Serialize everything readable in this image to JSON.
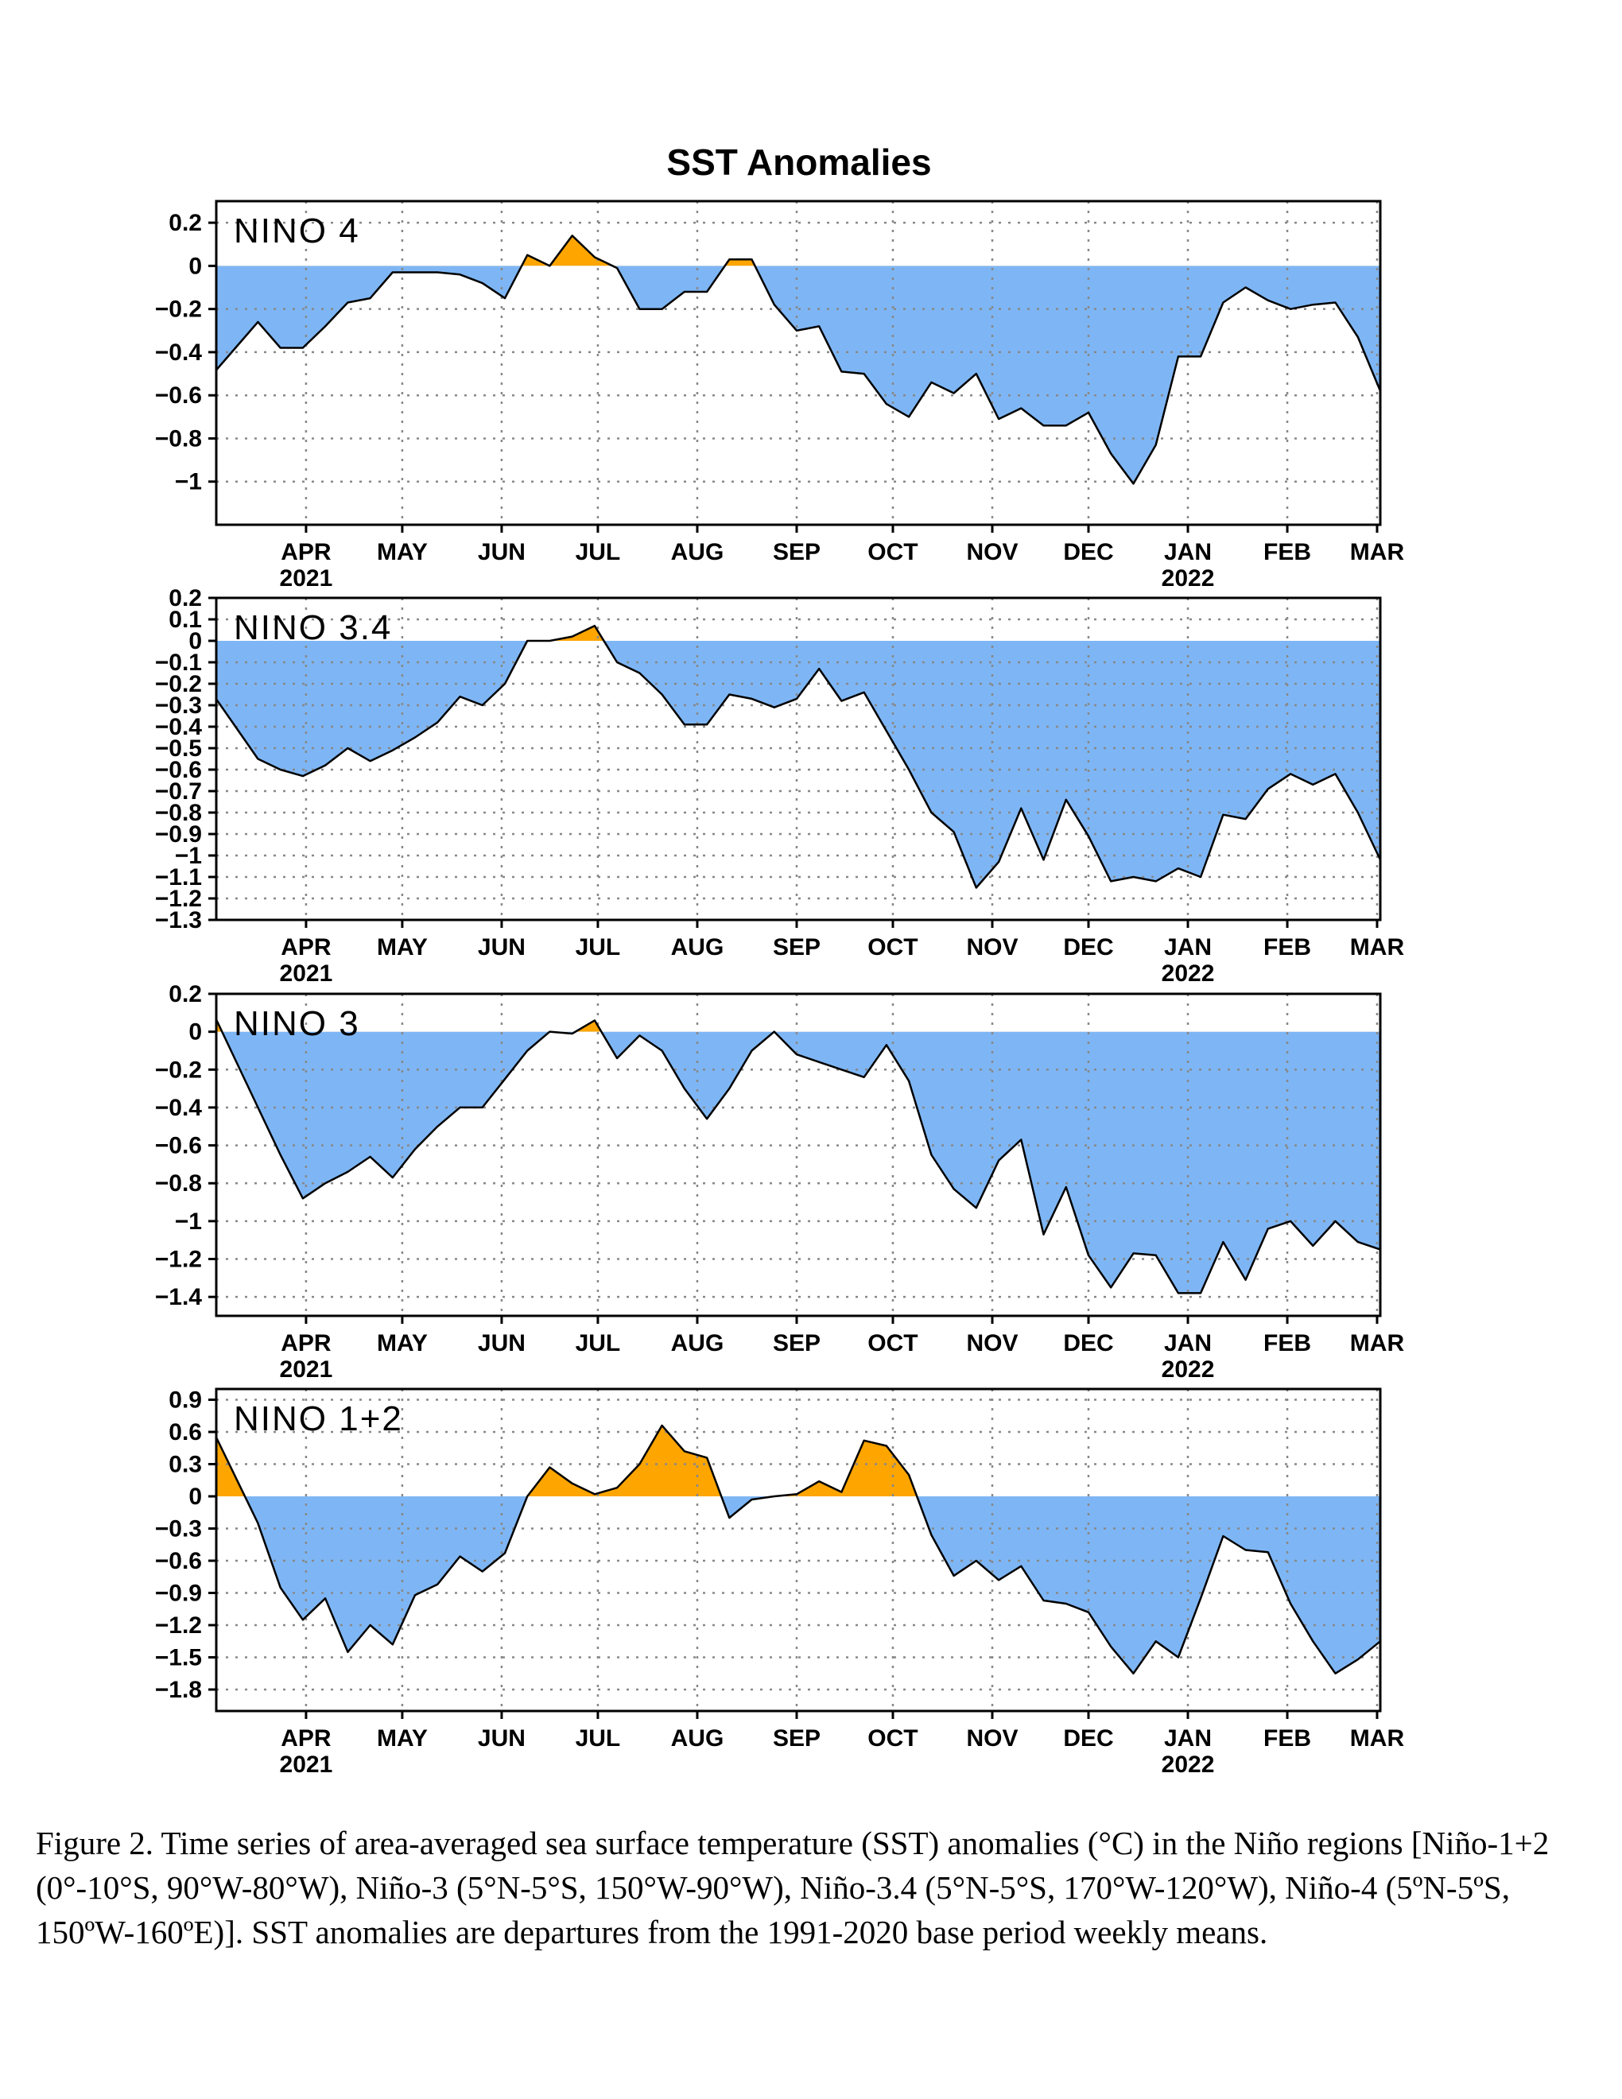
{
  "title": "SST Anomalies",
  "months": [
    "APR",
    "MAY",
    "JUN",
    "JUL",
    "AUG",
    "SEP",
    "OCT",
    "NOV",
    "DEC",
    "JAN",
    "FEB",
    "MAR"
  ],
  "years": [
    {
      "label": "2021",
      "month": "APR"
    },
    {
      "label": "2022",
      "month": "JAN"
    }
  ],
  "colors": {
    "positive": "#FFA500",
    "negative": "#7EB6F5",
    "line": "#000000",
    "grid": "#888888"
  },
  "caption": "Figure 2. Time series of area-averaged sea surface temperature (SST) anomalies (°C) in the Niño regions [Niño-1+2 (0°-10°S, 90°W-80°W), Niño-3 (5°N-5°S, 150°W-90°W), Niño-3.4 (5°N-5°S, 170°W-120°W), Niño-4 (5ºN-5ºS, 150ºW-160ºE)]. SST anomalies are departures from the 1991-2020 base period weekly means.",
  "chart_data": [
    {
      "type": "area",
      "label": "NINO 4",
      "ylim": [
        -1.2,
        0.3
      ],
      "yticks": [
        0.2,
        0,
        -0.2,
        -0.4,
        -0.6,
        -0.8,
        -1
      ],
      "ytick_labels": [
        "0.2",
        "0",
        "−0.2",
        "−0.4",
        "−0.6",
        "−0.8",
        "−1"
      ],
      "x": [
        "2021-03-10",
        "2021-03-17",
        "2021-03-24",
        "2021-03-31",
        "2021-04-07",
        "2021-04-14",
        "2021-04-21",
        "2021-04-28",
        "2021-05-05",
        "2021-05-12",
        "2021-05-19",
        "2021-05-26",
        "2021-06-02",
        "2021-06-09",
        "2021-06-16",
        "2021-06-23",
        "2021-06-30",
        "2021-07-07",
        "2021-07-14",
        "2021-07-21",
        "2021-07-28",
        "2021-08-04",
        "2021-08-11",
        "2021-08-18",
        "2021-08-25",
        "2021-09-01",
        "2021-09-08",
        "2021-09-15",
        "2021-09-22",
        "2021-09-29",
        "2021-10-06",
        "2021-10-13",
        "2021-10-20",
        "2021-10-27",
        "2021-11-03",
        "2021-11-10",
        "2021-11-17",
        "2021-11-24",
        "2021-12-01",
        "2021-12-08",
        "2021-12-15",
        "2021-12-22",
        "2021-12-29",
        "2022-01-05",
        "2022-01-12",
        "2022-01-19",
        "2022-01-26",
        "2022-02-02",
        "2022-02-09",
        "2022-02-16",
        "2022-02-23",
        "2022-03-02"
      ],
      "values": [
        -0.38,
        -0.26,
        -0.38,
        -0.38,
        -0.28,
        -0.17,
        -0.15,
        -0.03,
        -0.03,
        -0.03,
        -0.04,
        -0.08,
        -0.15,
        0.05,
        0,
        0.14,
        0.04,
        -0.01,
        -0.2,
        -0.2,
        -0.12,
        -0.12,
        0.03,
        0.03,
        -0.18,
        -0.3,
        -0.28,
        -0.49,
        -0.5,
        -0.64,
        -0.7,
        -0.54,
        -0.59,
        -0.5,
        -0.71,
        -0.66,
        -0.74,
        -0.74,
        -0.68,
        -0.87,
        -1.01,
        -0.83,
        -0.42,
        -0.42,
        -0.17,
        -0.1,
        -0.16,
        -0.2,
        -0.18,
        -0.17,
        -0.33,
        -0.58
      ]
    },
    {
      "type": "area",
      "label": "NINO 3.4",
      "ylim": [
        -1.3,
        0.2
      ],
      "yticks": [
        0.2,
        0.1,
        0,
        -0.1,
        -0.2,
        -0.3,
        -0.4,
        -0.5,
        -0.6,
        -0.7,
        -0.8,
        -0.9,
        -1,
        -1.1,
        -1.2,
        -1.3
      ],
      "ytick_labels": [
        "0.2",
        "0.1",
        "0",
        "−0.1",
        "−0.2",
        "−0.3",
        "−0.4",
        "−0.5",
        "−0.6",
        "−0.7",
        "−0.8",
        "−0.9",
        "−1",
        "−1.1",
        "−1.2",
        "−1.3"
      ],
      "x": [
        "2021-03-10",
        "2021-03-17",
        "2021-03-24",
        "2021-03-31",
        "2021-04-07",
        "2021-04-14",
        "2021-04-21",
        "2021-04-28",
        "2021-05-05",
        "2021-05-12",
        "2021-05-19",
        "2021-05-26",
        "2021-06-02",
        "2021-06-09",
        "2021-06-16",
        "2021-06-23",
        "2021-06-30",
        "2021-07-07",
        "2021-07-14",
        "2021-07-21",
        "2021-07-28",
        "2021-08-04",
        "2021-08-11",
        "2021-08-18",
        "2021-08-25",
        "2021-09-01",
        "2021-09-08",
        "2021-09-15",
        "2021-09-22",
        "2021-09-29",
        "2021-10-06",
        "2021-10-13",
        "2021-10-20",
        "2021-10-27",
        "2021-11-03",
        "2021-11-10",
        "2021-11-17",
        "2021-11-24",
        "2021-12-01",
        "2021-12-08",
        "2021-12-15",
        "2021-12-22",
        "2021-12-29",
        "2022-01-05",
        "2022-01-12",
        "2022-01-19",
        "2022-01-26",
        "2022-02-02",
        "2022-02-09",
        "2022-02-16",
        "2022-02-23",
        "2022-03-02"
      ],
      "values": [
        -0.4,
        -0.55,
        -0.6,
        -0.63,
        -0.58,
        -0.5,
        -0.56,
        -0.51,
        -0.45,
        -0.38,
        -0.26,
        -0.3,
        -0.2,
        0,
        0,
        0.02,
        0.07,
        -0.1,
        -0.15,
        -0.25,
        -0.39,
        -0.39,
        -0.25,
        -0.27,
        -0.31,
        -0.27,
        -0.13,
        -0.28,
        -0.24,
        -0.42,
        -0.6,
        -0.8,
        -0.89,
        -1.15,
        -1.03,
        -0.78,
        -1.02,
        -0.74,
        -0.91,
        -1.12,
        -1.1,
        -1.12,
        -1.06,
        -1.1,
        -0.81,
        -0.83,
        -0.69,
        -0.62,
        -0.67,
        -0.62,
        -0.8,
        -1.02
      ]
    },
    {
      "type": "area",
      "label": "NINO 3",
      "ylim": [
        -1.5,
        0.2
      ],
      "yticks": [
        0.2,
        0,
        -0.2,
        -0.4,
        -0.6,
        -0.8,
        -1,
        -1.2,
        -1.4
      ],
      "ytick_labels": [
        "0.2",
        "0",
        "−0.2",
        "−0.4",
        "−0.6",
        "−0.8",
        "−1",
        "−1.2",
        "−1.4"
      ],
      "x": [
        "2021-03-10",
        "2021-03-17",
        "2021-03-24",
        "2021-03-31",
        "2021-04-07",
        "2021-04-14",
        "2021-04-21",
        "2021-04-28",
        "2021-05-05",
        "2021-05-12",
        "2021-05-19",
        "2021-05-26",
        "2021-06-02",
        "2021-06-09",
        "2021-06-16",
        "2021-06-23",
        "2021-06-30",
        "2021-07-07",
        "2021-07-14",
        "2021-07-21",
        "2021-07-28",
        "2021-08-04",
        "2021-08-11",
        "2021-08-18",
        "2021-08-25",
        "2021-09-01",
        "2021-09-08",
        "2021-09-15",
        "2021-09-22",
        "2021-09-29",
        "2021-10-06",
        "2021-10-13",
        "2021-10-20",
        "2021-10-27",
        "2021-11-03",
        "2021-11-10",
        "2021-11-17",
        "2021-11-24",
        "2021-12-01",
        "2021-12-08",
        "2021-12-15",
        "2021-12-22",
        "2021-12-29",
        "2022-01-05",
        "2022-01-12",
        "2022-01-19",
        "2022-01-26",
        "2022-02-02",
        "2022-02-09",
        "2022-02-16",
        "2022-02-23",
        "2022-03-02"
      ],
      "values": [
        -0.15,
        -0.4,
        -0.65,
        -0.88,
        -0.8,
        -0.74,
        -0.66,
        -0.77,
        -0.62,
        -0.5,
        -0.4,
        -0.4,
        -0.25,
        -0.1,
        0,
        -0.01,
        0.06,
        -0.14,
        -0.02,
        -0.1,
        -0.3,
        -0.46,
        -0.3,
        -0.1,
        0,
        -0.12,
        -0.16,
        -0.2,
        -0.24,
        -0.07,
        -0.26,
        -0.65,
        -0.83,
        -0.93,
        -0.68,
        -0.57,
        -1.07,
        -0.82,
        -1.18,
        -1.35,
        -1.17,
        -1.18,
        -1.38,
        -1.38,
        -1.11,
        -1.31,
        -1.04,
        -1.0,
        -1.13,
        -1.0,
        -1.11,
        -1.15
      ]
    },
    {
      "type": "area",
      "label": "NINO 1+2",
      "ylim": [
        -2.0,
        1.0
      ],
      "yticks": [
        0.9,
        0.6,
        0.3,
        0,
        -0.3,
        -0.6,
        -0.9,
        -1.2,
        -1.5,
        -1.8
      ],
      "ytick_labels": [
        "0.9",
        "0.6",
        "0.3",
        "0",
        "−0.3",
        "−0.6",
        "−0.9",
        "−1.2",
        "−1.5",
        "−1.8"
      ],
      "x": [
        "2021-03-10",
        "2021-03-17",
        "2021-03-24",
        "2021-03-31",
        "2021-04-07",
        "2021-04-14",
        "2021-04-21",
        "2021-04-28",
        "2021-05-05",
        "2021-05-12",
        "2021-05-19",
        "2021-05-26",
        "2021-06-02",
        "2021-06-09",
        "2021-06-16",
        "2021-06-23",
        "2021-06-30",
        "2021-07-07",
        "2021-07-14",
        "2021-07-21",
        "2021-07-28",
        "2021-08-04",
        "2021-08-11",
        "2021-08-18",
        "2021-08-25",
        "2021-09-01",
        "2021-09-08",
        "2021-09-15",
        "2021-09-22",
        "2021-09-29",
        "2021-10-06",
        "2021-10-13",
        "2021-10-20",
        "2021-10-27",
        "2021-11-03",
        "2021-11-10",
        "2021-11-17",
        "2021-11-24",
        "2021-12-01",
        "2021-12-08",
        "2021-12-15",
        "2021-12-22",
        "2021-12-29",
        "2022-01-05",
        "2022-01-12",
        "2022-01-19",
        "2022-01-26",
        "2022-02-02",
        "2022-02-09",
        "2022-02-16",
        "2022-02-23",
        "2022-03-02"
      ],
      "values": [
        0.18,
        -0.25,
        -0.85,
        -1.15,
        -0.95,
        -1.45,
        -1.2,
        -1.38,
        -0.92,
        -0.82,
        -0.56,
        -0.7,
        -0.53,
        0,
        0.27,
        0.12,
        0.02,
        0.08,
        0.3,
        0.66,
        0.42,
        0.36,
        -0.2,
        -0.03,
        0,
        0.02,
        0.14,
        0.04,
        0.52,
        0.47,
        0.2,
        -0.36,
        -0.74,
        -0.6,
        -0.78,
        -0.65,
        -0.97,
        -1.0,
        -1.08,
        -1.4,
        -1.65,
        -1.35,
        -1.5,
        -0.95,
        -0.37,
        -0.5,
        -0.52,
        -1.0,
        -1.35,
        -1.65,
        -1.52,
        -1.35
      ]
    }
  ]
}
